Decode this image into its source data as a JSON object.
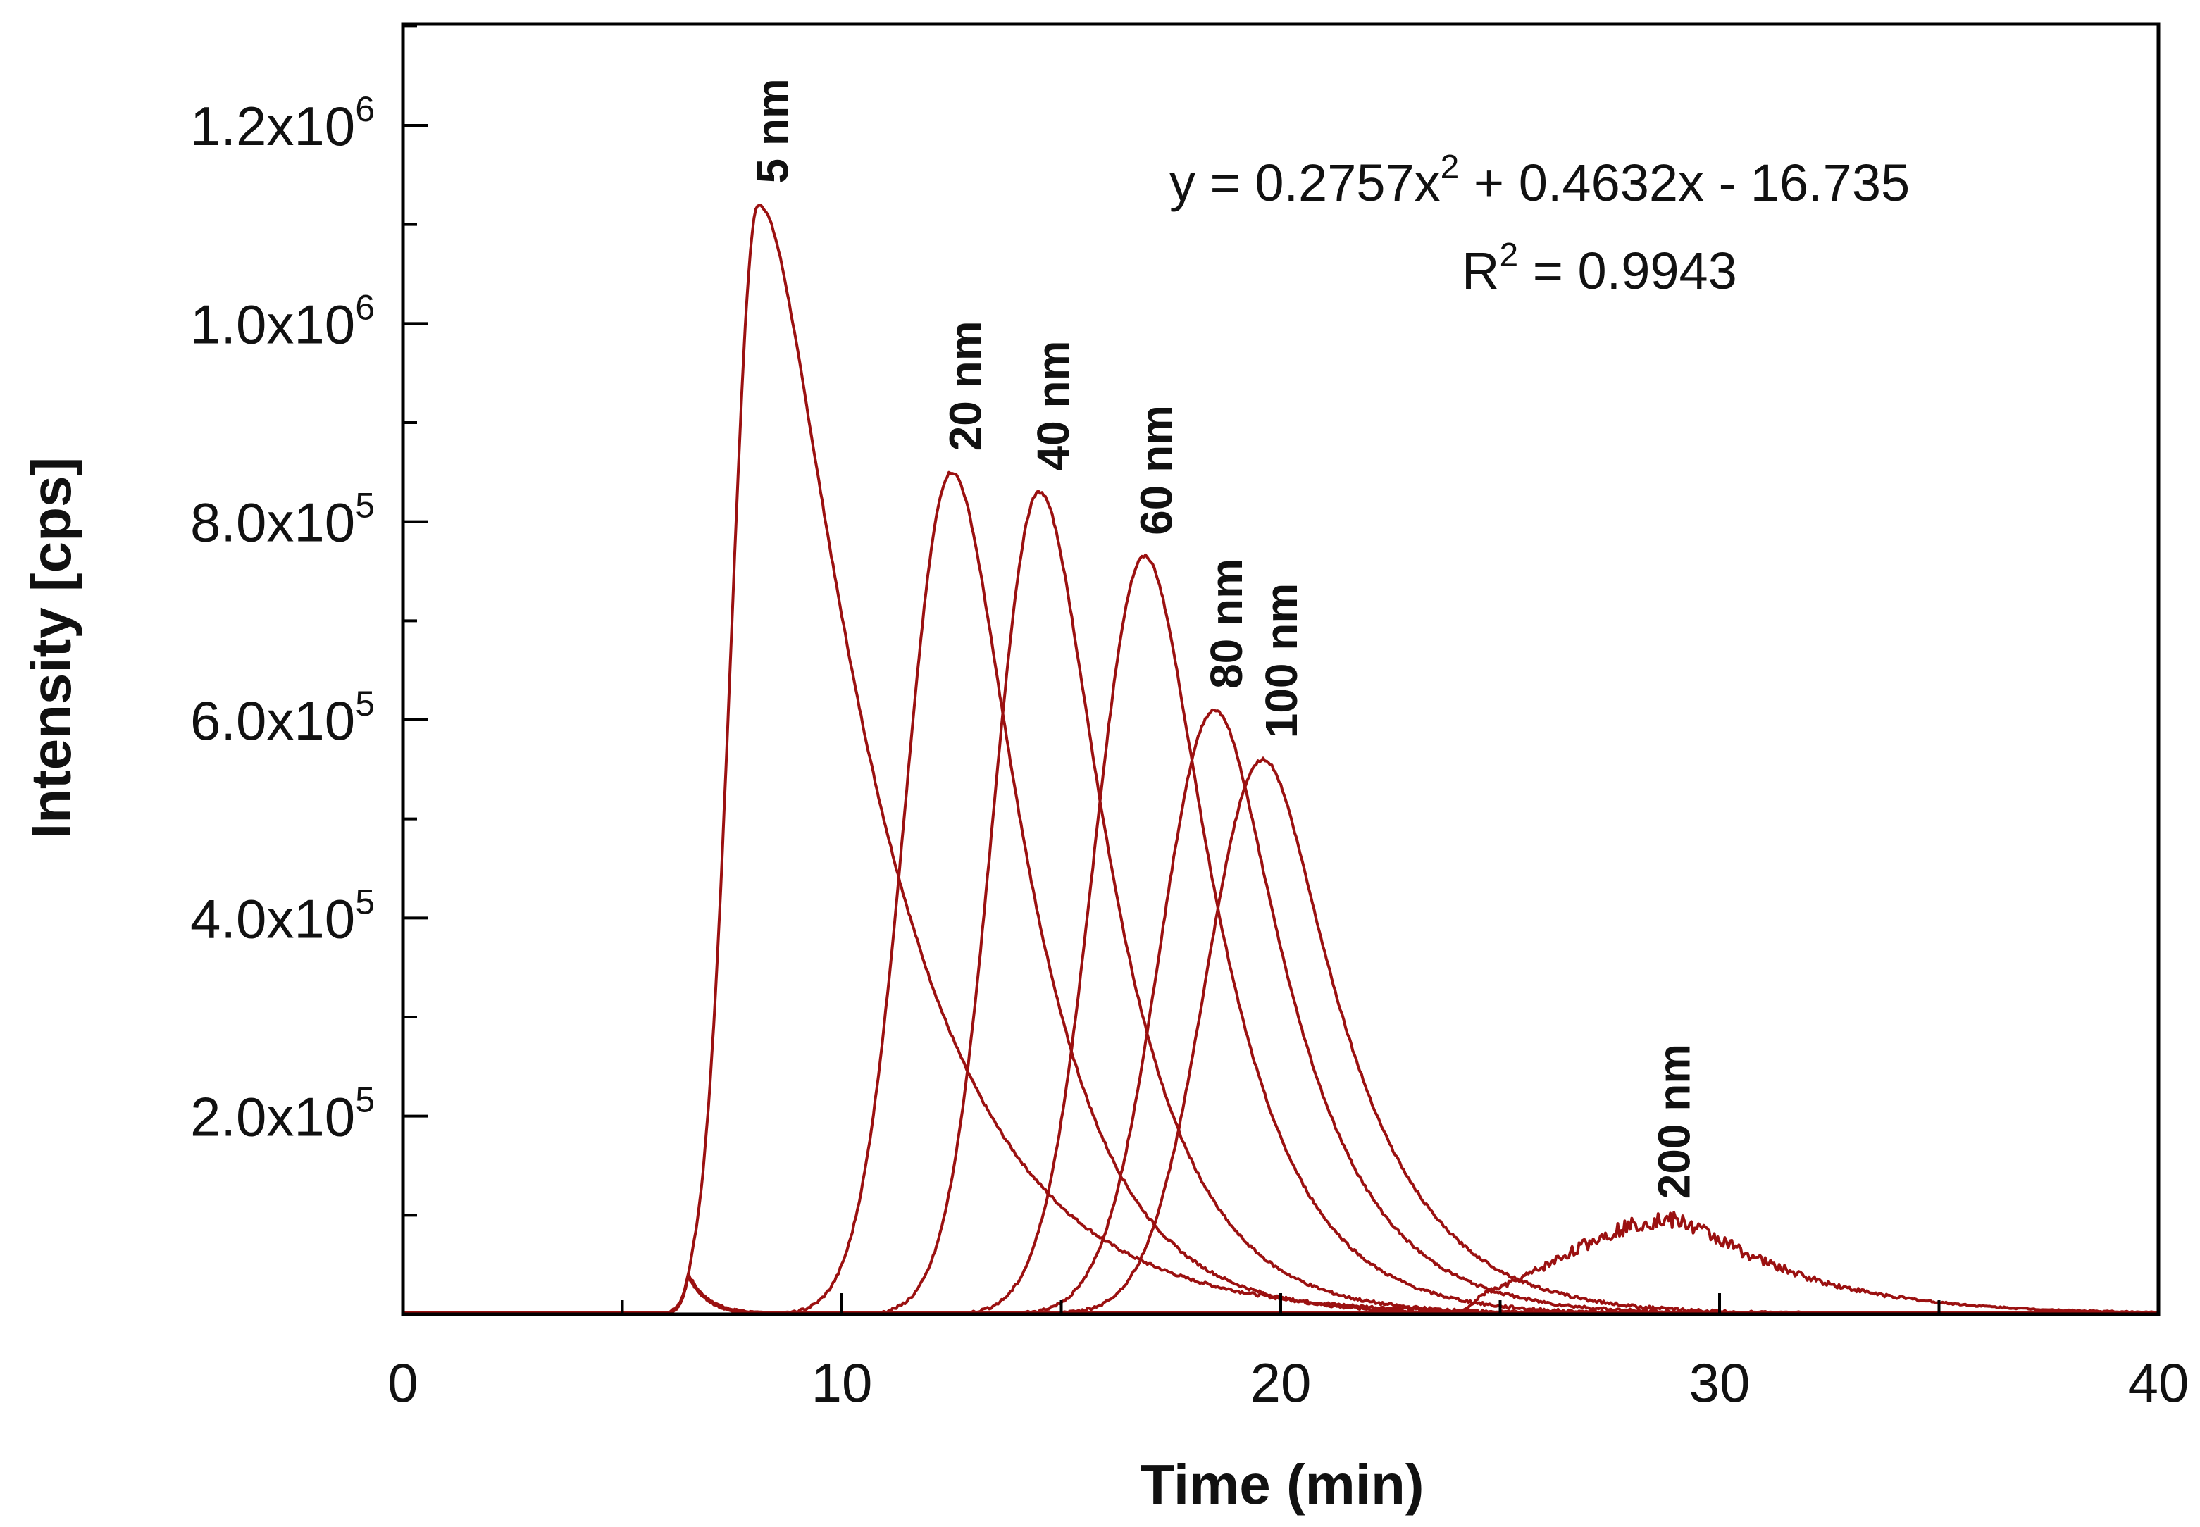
{
  "chart_data": {
    "type": "line",
    "title": "",
    "xlabel": "Time (min)",
    "ylabel": "Intensity [cps]",
    "xlim": [
      0,
      40
    ],
    "ylim": [
      0,
      1300000
    ],
    "x_ticks": [
      0,
      10,
      20,
      30,
      40
    ],
    "x_tick_labels": [
      "0",
      "10",
      "20",
      "30",
      "40"
    ],
    "x_minor_step": 5,
    "y_ticks": [
      200000,
      400000,
      600000,
      800000,
      1000000,
      1200000
    ],
    "y_tick_labels": [
      {
        "mant": "2.0x10",
        "exp": "5"
      },
      {
        "mant": "4.0x10",
        "exp": "5"
      },
      {
        "mant": "6.0x10",
        "exp": "5"
      },
      {
        "mant": "8.0x10",
        "exp": "5"
      },
      {
        "mant": "1.0x10",
        "exp": "6"
      },
      {
        "mant": "1.2x10",
        "exp": "6"
      }
    ],
    "y_minor_step": 100000,
    "grid": false,
    "line_color": "#9b1111",
    "series": [
      {
        "name": "5 nm",
        "peak_time": 8.1,
        "peak_intensity": 1120000,
        "rise_sigma": 0.62,
        "tail_tau": 2.6,
        "onset": 6.0
      },
      {
        "name": "20 nm",
        "peak_time": 12.5,
        "peak_intensity": 850000,
        "rise_sigma": 1.05,
        "tail_tau": 1.7,
        "onset": 8.5
      },
      {
        "name": "40 nm",
        "peak_time": 14.5,
        "peak_intensity": 830000,
        "rise_sigma": 1.05,
        "tail_tau": 1.6,
        "onset": 10.5
      },
      {
        "name": "60 nm",
        "peak_time": 16.9,
        "peak_intensity": 765000,
        "rise_sigma": 1.15,
        "tail_tau": 1.6,
        "onset": 12.5
      },
      {
        "name": "80 nm",
        "peak_time": 18.5,
        "peak_intensity": 610000,
        "rise_sigma": 1.25,
        "tail_tau": 1.7,
        "onset": 13.5
      },
      {
        "name": "100 nm",
        "peak_time": 19.6,
        "peak_intensity": 560000,
        "rise_sigma": 1.3,
        "tail_tau": 1.8,
        "onset": 14.5
      },
      {
        "name": "200 nm",
        "peak_time": 28.8,
        "peak_intensity": 95000,
        "rise_sigma": 2.4,
        "tail_tau": 2.6,
        "onset": 24.0
      }
    ],
    "void_peak": {
      "time": 6.5,
      "intensity": 40000
    },
    "annotations": {
      "equation": {
        "main": "y = 0.2757x",
        "exp": "2",
        "rest": " + 0.4632x - 16.735"
      },
      "r_squared": {
        "main": "R",
        "exp": "2",
        "rest": " = 0.9943"
      }
    }
  }
}
